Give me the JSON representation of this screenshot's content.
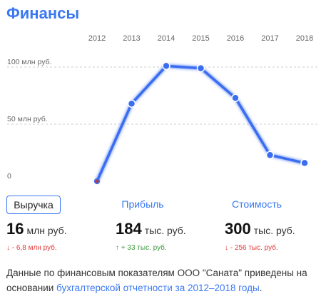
{
  "title": "Финансы",
  "tabs": [
    {
      "label": "Выручка",
      "active": true
    },
    {
      "label": "Прибыль",
      "active": false
    },
    {
      "label": "Стоимость",
      "active": false
    }
  ],
  "metrics": [
    {
      "value": "16",
      "unit": "млн руб.",
      "delta": "↓ - 6,8 млн руб.",
      "direction": "down"
    },
    {
      "value": "184",
      "unit": "тыс. руб.",
      "delta": "↑ + 33 тыс. руб.",
      "direction": "up"
    },
    {
      "value": "300",
      "unit": "тыс. руб.",
      "delta": "↓ - 256 тыс. руб.",
      "direction": "down"
    }
  ],
  "footnote": {
    "text": "Данные по финансовым показателям ООО \"Саната\" приведены на основании ",
    "link": "бухгалтерской отчетности за 2012–2018 годы",
    "after": "."
  },
  "colors": {
    "accent": "#3a78f2",
    "line": "#3a6df0",
    "first_point": "#c0392b",
    "down": "#e23a3a",
    "up": "#3d9a3d"
  },
  "chart_data": {
    "type": "line",
    "x": [
      "2012",
      "2013",
      "2014",
      "2015",
      "2016",
      "2017",
      "2018"
    ],
    "series": [
      {
        "values": [
          0,
          68,
          101,
          99,
          73,
          23,
          16
        ]
      }
    ],
    "yticks": [
      {
        "value": 0,
        "label": "0"
      },
      {
        "value": 50,
        "label": "50 млн руб."
      },
      {
        "value": 100,
        "label": "100 млн руб."
      }
    ],
    "ylim": [
      0,
      100
    ],
    "ylabel_unit": "млн руб.",
    "grid": true
  }
}
